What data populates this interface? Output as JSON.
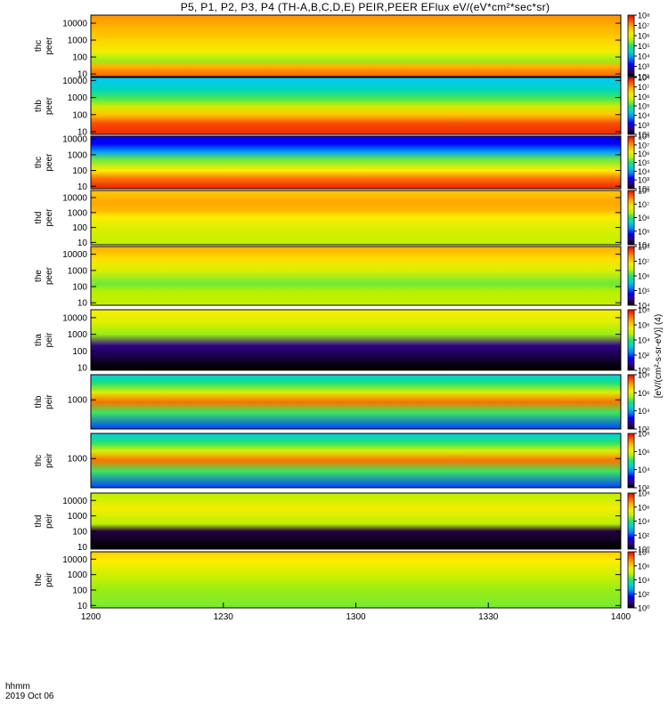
{
  "title": "P5, P1, P2, P3, P4 (TH-A,B,C,D,E) PEIR,PEER EFlux eV/(eV*cm²*sec*sr)",
  "time_axis": {
    "label": "hhmm",
    "date": "2019 Oct 06",
    "ticks": [
      "1200",
      "1230",
      "1300",
      "1330",
      "1400"
    ],
    "range": [
      "12:00",
      "14:00"
    ]
  },
  "colorbar_units": "[eV/(cm²-s-sr-eV)] (4)",
  "chart_data": [
    {
      "type": "heatmap",
      "probe": "thc",
      "species": "peer",
      "ylabel": [
        "thc",
        "peer"
      ],
      "ylog": true,
      "ylim": [
        7,
        30000
      ],
      "yticks": [
        "10",
        "100",
        "1000",
        "10000"
      ],
      "colorbar": {
        "log": true,
        "ticks": [
          "10²",
          "10³",
          "10⁴",
          "10⁵",
          "10⁶",
          "10⁷",
          "10⁸"
        ],
        "range": [
          100,
          100000000
        ]
      },
      "profile": [
        {
          "energy": 10,
          "level": 0.88
        },
        {
          "energy": 30,
          "level": 0.8
        },
        {
          "energy": 60,
          "level": 0.58
        },
        {
          "energy": 200,
          "level": 0.7
        },
        {
          "energy": 1000,
          "level": 0.76
        },
        {
          "energy": 5000,
          "level": 0.8
        },
        {
          "energy": 20000,
          "level": 0.84
        }
      ]
    },
    {
      "type": "heatmap",
      "probe": "thb",
      "species": "peer",
      "ylabel": [
        "thb",
        "peer"
      ],
      "ylog": true,
      "ylim": [
        7,
        15000
      ],
      "yticks": [
        "10",
        "100",
        "1000",
        "10000"
      ],
      "colorbar": {
        "log": true,
        "ticks": [
          "10²",
          "10³",
          "10⁴",
          "10⁵",
          "10⁶",
          "10⁷",
          "10⁸"
        ],
        "range": [
          100,
          100000000
        ]
      },
      "profile": [
        {
          "energy": 10,
          "level": 0.95
        },
        {
          "energy": 30,
          "level": 0.92
        },
        {
          "energy": 100,
          "level": 0.78
        },
        {
          "energy": 300,
          "level": 0.64
        },
        {
          "energy": 1000,
          "level": 0.52
        },
        {
          "energy": 3000,
          "level": 0.42
        },
        {
          "energy": 15000,
          "level": 0.36
        }
      ]
    },
    {
      "type": "heatmap",
      "probe": "thc",
      "species": "peer",
      "ylabel": [
        "thc",
        "peer"
      ],
      "ylog": true,
      "ylim": [
        7,
        15000
      ],
      "yticks": [
        "10",
        "100",
        "1000",
        "10000"
      ],
      "colorbar": {
        "log": true,
        "ticks": [
          "10²",
          "10³",
          "10⁴",
          "10⁵",
          "10⁶",
          "10⁷",
          "10⁸"
        ],
        "range": [
          100,
          100000000
        ]
      },
      "profile": [
        {
          "energy": 10,
          "level": 0.95
        },
        {
          "energy": 30,
          "level": 0.88
        },
        {
          "energy": 100,
          "level": 0.72
        },
        {
          "energy": 500,
          "level": 0.55
        },
        {
          "energy": 1500,
          "level": 0.32
        },
        {
          "energy": 5000,
          "level": 0.2
        },
        {
          "energy": 15000,
          "level": 0.18
        }
      ]
    },
    {
      "type": "heatmap",
      "probe": "thd",
      "species": "peer",
      "ylabel": [
        "thd",
        "peer"
      ],
      "ylog": true,
      "ylim": [
        7,
        30000
      ],
      "yticks": [
        "10",
        "100",
        "1000",
        "10000"
      ],
      "colorbar": {
        "log": true,
        "ticks": [
          "10⁴",
          "10⁵",
          "10⁶",
          "10⁷",
          "10⁸"
        ],
        "range": [
          10000,
          100000000
        ]
      },
      "profile": [
        {
          "energy": 10,
          "level": 0.62
        },
        {
          "energy": 100,
          "level": 0.66
        },
        {
          "energy": 500,
          "level": 0.72
        },
        {
          "energy": 1500,
          "level": 0.8
        },
        {
          "energy": 5000,
          "level": 0.82
        },
        {
          "energy": 20000,
          "level": 0.78
        }
      ]
    },
    {
      "type": "heatmap",
      "probe": "the",
      "species": "peer",
      "ylabel": [
        "the",
        "peer"
      ],
      "ylog": true,
      "ylim": [
        7,
        30000
      ],
      "yticks": [
        "10",
        "100",
        "1000",
        "10000"
      ],
      "colorbar": {
        "log": true,
        "ticks": [
          "10⁴",
          "10⁵",
          "10⁶",
          "10⁷",
          "10⁸"
        ],
        "range": [
          10000,
          100000000
        ]
      },
      "profile": [
        {
          "energy": 10,
          "level": 0.62
        },
        {
          "energy": 50,
          "level": 0.6
        },
        {
          "energy": 150,
          "level": 0.55
        },
        {
          "energy": 1000,
          "level": 0.66
        },
        {
          "energy": 5000,
          "level": 0.74
        },
        {
          "energy": 20000,
          "level": 0.8
        }
      ]
    },
    {
      "type": "heatmap",
      "probe": "tha",
      "species": "peir",
      "ylabel": [
        "tha",
        "peir"
      ],
      "ylog": true,
      "ylim": [
        7,
        30000
      ],
      "yticks": [
        "10",
        "100",
        "1000",
        "10000"
      ],
      "colorbar": {
        "log": true,
        "ticks": [
          "10⁰",
          "10²",
          "10⁴",
          "10⁶",
          "10⁸"
        ],
        "range": [
          1,
          100000000
        ]
      },
      "profile": [
        {
          "energy": 10,
          "level": 0.0
        },
        {
          "energy": 200,
          "level": 0.1
        },
        {
          "energy": 1000,
          "level": 0.58
        },
        {
          "energy": 5000,
          "level": 0.66
        },
        {
          "energy": 20000,
          "level": 0.7
        }
      ]
    },
    {
      "type": "heatmap",
      "probe": "thb",
      "species": "peir",
      "ylabel": [
        "thb",
        "peir"
      ],
      "ylog": true,
      "ylim": [
        200,
        4000
      ],
      "yticks": [
        "1000"
      ],
      "colorbar": {
        "log": true,
        "ticks": [
          "10²",
          "10⁴",
          "10⁶",
          "10⁸"
        ],
        "range": [
          100,
          100000000
        ]
      },
      "profile": [
        {
          "energy": 200,
          "level": 0.25
        },
        {
          "energy": 500,
          "level": 0.52
        },
        {
          "energy": 900,
          "level": 0.88
        },
        {
          "energy": 1500,
          "level": 0.66
        },
        {
          "energy": 2500,
          "level": 0.5
        },
        {
          "energy": 4000,
          "level": 0.38
        }
      ]
    },
    {
      "type": "heatmap",
      "probe": "thc",
      "species": "peir",
      "ylabel": [
        "thc",
        "peir"
      ],
      "ylog": true,
      "ylim": [
        200,
        4000
      ],
      "yticks": [
        "1000"
      ],
      "colorbar": {
        "log": true,
        "ticks": [
          "10²",
          "10⁴",
          "10⁶",
          "10⁸"
        ],
        "range": [
          100,
          100000000
        ]
      },
      "profile": [
        {
          "energy": 200,
          "level": 0.25
        },
        {
          "energy": 500,
          "level": 0.52
        },
        {
          "energy": 900,
          "level": 0.88
        },
        {
          "energy": 1500,
          "level": 0.66
        },
        {
          "energy": 2500,
          "level": 0.5
        },
        {
          "energy": 4000,
          "level": 0.38
        }
      ]
    },
    {
      "type": "heatmap",
      "probe": "thd",
      "species": "peir",
      "ylabel": [
        "thd",
        "peir"
      ],
      "ylog": true,
      "ylim": [
        7,
        30000
      ],
      "yticks": [
        "10",
        "100",
        "1000",
        "10000"
      ],
      "colorbar": {
        "log": true,
        "ticks": [
          "10⁰",
          "10²",
          "10⁴",
          "10⁶",
          "10⁸"
        ],
        "range": [
          1,
          100000000
        ]
      },
      "profile": [
        {
          "energy": 10,
          "level": 0.0
        },
        {
          "energy": 100,
          "level": 0.05
        },
        {
          "energy": 300,
          "level": 0.6
        },
        {
          "energy": 3000,
          "level": 0.7
        },
        {
          "energy": 20000,
          "level": 0.62
        }
      ]
    },
    {
      "type": "heatmap",
      "probe": "the",
      "species": "peir",
      "ylabel": [
        "the",
        "peir"
      ],
      "ylog": true,
      "ylim": [
        7,
        30000
      ],
      "yticks": [
        "10",
        "100",
        "1000",
        "10000"
      ],
      "colorbar": {
        "log": true,
        "ticks": [
          "10⁰",
          "10²",
          "10⁴",
          "10⁶",
          "10⁸"
        ],
        "range": [
          1,
          100000000
        ]
      },
      "profile": [
        {
          "energy": 10,
          "level": 0.56
        },
        {
          "energy": 100,
          "level": 0.58
        },
        {
          "energy": 1000,
          "level": 0.64
        },
        {
          "energy": 8000,
          "level": 0.72
        },
        {
          "energy": 25000,
          "level": 0.76
        }
      ]
    }
  ]
}
